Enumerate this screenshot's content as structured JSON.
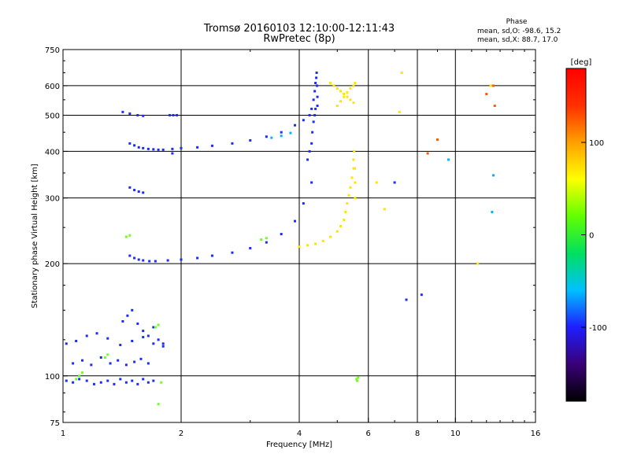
{
  "chart_data": {
    "type": "scatter",
    "title": "Tromsø 20160103 12:10:00-12:11:43",
    "subtitle": "RwPretec (8p)",
    "xlabel": "Frequency [MHz]",
    "ylabel": "Stationary phase Virtual Height [km]",
    "x_scale": "log",
    "y_scale": "log",
    "xlim": [
      1,
      16
    ],
    "ylim": [
      75,
      750
    ],
    "x_ticks": [
      1,
      2,
      4,
      6,
      8,
      10,
      16
    ],
    "x_tick_labels": [
      "1",
      "2",
      "4",
      "6",
      "8",
      "10",
      "16"
    ],
    "x_grid": [
      2,
      4,
      6,
      8,
      10
    ],
    "y_ticks": [
      75,
      100,
      200,
      300,
      400,
      500,
      600,
      750
    ],
    "y_tick_labels": [
      "75",
      "100",
      "200",
      "300",
      "400",
      "500",
      "600",
      "750"
    ],
    "y_grid": [
      100,
      200,
      300,
      400,
      500,
      600
    ],
    "grid": true,
    "stats": {
      "heading": "Phase",
      "line_o": "mean, sd,O: -98.6, 15.2",
      "line_x": "mean, sd,X:  88.7, 17.0"
    },
    "colorbar": {
      "label": "[deg]",
      "range": [
        -180,
        180
      ],
      "ticks": [
        100,
        0,
        -100
      ],
      "tick_labels": [
        "100",
        "0",
        "-100"
      ],
      "colormap": [
        "#000000",
        "#3a0077",
        "#1e1eff",
        "#00c0ff",
        "#00e060",
        "#60ff00",
        "#ffff00",
        "#ffa000",
        "#ff3000",
        "#ff0000"
      ]
    },
    "series": [
      {
        "name": "O",
        "color": "#1a2bff",
        "phase": -100,
        "x": [
          1.02,
          1.06,
          1.1,
          1.15,
          1.2,
          1.25,
          1.3,
          1.35,
          1.4,
          1.45,
          1.5,
          1.55,
          1.6,
          1.65,
          1.7,
          1.06,
          1.12,
          1.18,
          1.25,
          1.32,
          1.38,
          1.45,
          1.52,
          1.58,
          1.65,
          1.02,
          1.08,
          1.15,
          1.22,
          1.3,
          1.4,
          1.5,
          1.6,
          1.7,
          1.8,
          1.42,
          1.46,
          1.5,
          1.55,
          1.6,
          1.65,
          1.7,
          1.75,
          1.8,
          1.48,
          1.52,
          1.56,
          1.6,
          1.66,
          1.72,
          1.85,
          2.0,
          2.2,
          2.4,
          2.7,
          3.0,
          3.3,
          3.6,
          3.9,
          4.1,
          4.3,
          1.48,
          1.52,
          1.56,
          1.6,
          1.65,
          1.7,
          1.75,
          1.8,
          1.9,
          2.0,
          2.2,
          2.4,
          2.7,
          3.0,
          3.3,
          3.6,
          3.9,
          4.1,
          4.25,
          4.3,
          4.35,
          4.38,
          4.4,
          4.42,
          4.43,
          4.44,
          4.45,
          4.45,
          1.42,
          1.48,
          1.55,
          1.6,
          1.48,
          1.52,
          1.56,
          1.6,
          4.2,
          4.25,
          4.3,
          4.32,
          4.35,
          4.38,
          4.4,
          1.87,
          1.91,
          1.95,
          1.9,
          7.0,
          7.5,
          8.2
        ],
        "y": [
          97,
          96,
          98,
          97,
          95,
          96,
          97,
          95,
          98,
          96,
          97,
          95,
          98,
          96,
          97,
          108,
          110,
          107,
          112,
          108,
          110,
          107,
          109,
          111,
          108,
          122,
          124,
          128,
          130,
          126,
          121,
          124,
          127,
          122,
          120,
          140,
          145,
          150,
          138,
          132,
          128,
          135,
          125,
          122,
          210,
          207,
          205,
          204,
          203,
          203,
          204,
          205,
          207,
          210,
          214,
          220,
          228,
          240,
          260,
          290,
          330,
          420,
          415,
          410,
          408,
          406,
          405,
          404,
          404,
          406,
          408,
          410,
          414,
          420,
          428,
          438,
          450,
          470,
          485,
          500,
          520,
          550,
          580,
          610,
          630,
          650,
          600,
          560,
          530,
          510,
          505,
          500,
          498,
          320,
          315,
          312,
          310,
          380,
          400,
          420,
          450,
          480,
          500,
          520,
          500,
          500,
          500,
          395,
          330,
          160,
          165
        ]
      },
      {
        "name": "X",
        "color": "#ffe400",
        "phase": 90,
        "x": [
          4.0,
          4.2,
          4.4,
          4.6,
          4.8,
          5.0,
          5.1,
          5.2,
          5.25,
          5.3,
          5.35,
          5.4,
          5.45,
          5.5,
          5.5,
          5.52,
          5.54,
          5.55,
          5.55,
          5.0,
          5.1,
          5.2,
          5.3,
          5.4,
          5.5,
          5.55,
          4.8,
          4.9,
          5.0,
          5.1,
          5.2,
          5.3,
          5.4,
          5.5,
          6.3,
          6.6,
          7.2,
          7.3,
          11.4,
          12.3
        ],
        "y": [
          222,
          224,
          226,
          230,
          236,
          244,
          252,
          262,
          275,
          290,
          305,
          320,
          340,
          360,
          380,
          400,
          360,
          330,
          300,
          530,
          545,
          560,
          575,
          590,
          600,
          610,
          610,
          600,
          590,
          580,
          570,
          560,
          550,
          540,
          330,
          280,
          510,
          650,
          200,
          600
        ]
      },
      {
        "name": "X-mixed",
        "color": "#70ff20",
        "phase": 40,
        "x": [
          1.08,
          1.1,
          1.12,
          1.28,
          1.3,
          1.45,
          1.48,
          1.72,
          1.75,
          3.2,
          3.3,
          5.6,
          5.62,
          5.65,
          1.75,
          1.78
        ],
        "y": [
          98,
          100,
          102,
          112,
          114,
          236,
          238,
          135,
          137,
          232,
          234,
          98,
          97,
          99,
          84,
          96
        ]
      },
      {
        "name": "X-hot",
        "color": "#ff5a00",
        "phase": 150,
        "x": [
          8.5,
          9.0,
          12.0,
          12.6,
          12.5
        ],
        "y": [
          395,
          430,
          570,
          530,
          600
        ]
      },
      {
        "name": "O-cyan",
        "color": "#00b4ff",
        "phase": -40,
        "x": [
          3.4,
          3.6,
          3.8,
          9.6,
          12.5,
          12.4
        ],
        "y": [
          435,
          440,
          448,
          380,
          345,
          275
        ]
      }
    ]
  }
}
